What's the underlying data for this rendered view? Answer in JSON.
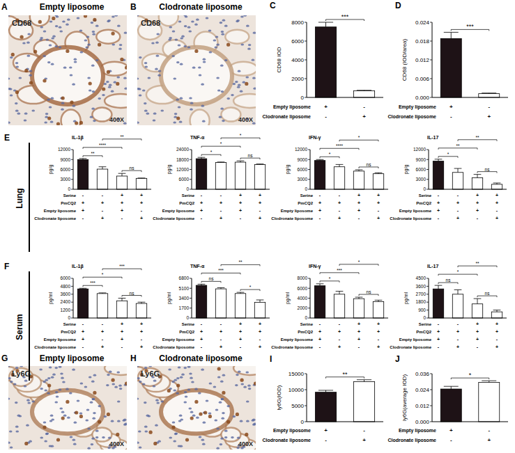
{
  "chart_data": [
    {
      "type": "bar",
      "panel_label": "C",
      "y_label": "CD68 IOD",
      "values": [
        7500,
        700
      ],
      "errors": [
        500,
        60
      ],
      "colors": [
        "#1e1216",
        "#ffffff"
      ],
      "ylim": [
        0,
        8000
      ],
      "yticks": [
        0,
        2000,
        4000,
        6000,
        8000
      ],
      "conditions": [
        {
          "name": "Empty liposome",
          "signs": [
            "+",
            "-"
          ]
        },
        {
          "name": "Clodronate liposome",
          "signs": [
            "-",
            "+"
          ]
        }
      ],
      "significance": [
        {
          "bars": [
            0,
            1
          ],
          "label": "***"
        }
      ]
    },
    {
      "type": "bar",
      "panel_label": "D",
      "y_label": "CD68 (IOD/area)",
      "values": [
        0.0188,
        0.0012
      ],
      "errors": [
        0.002,
        0.0002
      ],
      "colors": [
        "#1e1216",
        "#ffffff"
      ],
      "ylim": [
        0,
        0.024
      ],
      "yticks": [
        {
          "value": 0,
          "label": "0.000"
        },
        {
          "value": 0.006,
          "label": "0.006"
        },
        {
          "value": 0.012,
          "label": "0.012"
        },
        {
          "value": 0.018,
          "label": "0.018"
        },
        {
          "value": 0.024,
          "label": "0.024"
        }
      ],
      "conditions": [
        {
          "name": "Empty liposome",
          "signs": [
            "+",
            "-"
          ]
        },
        {
          "name": "Clodronate liposome",
          "signs": [
            "-",
            "+"
          ]
        }
      ],
      "significance": [
        {
          "bars": [
            0,
            1
          ],
          "label": "***"
        }
      ]
    },
    {
      "type": "bar",
      "title": "IL-1β",
      "y_label": "pg/g",
      "values": [
        9000,
        6100,
        4000,
        3300
      ],
      "errors": [
        300,
        700,
        800,
        100
      ],
      "colors": [
        "#1e1216",
        "#ffffff",
        "#ffffff",
        "#ffffff"
      ],
      "ylim": [
        0,
        12000
      ],
      "yticks": [
        0,
        3000,
        6000,
        9000,
        12000
      ],
      "conditions": [
        {
          "name": "Serine",
          "signs": [
            "-",
            "-",
            "+",
            "+"
          ]
        },
        {
          "name": "PmCQ2",
          "signs": [
            "+",
            "+",
            "+",
            "+"
          ]
        },
        {
          "name": "Empty liposome",
          "signs": [
            "+",
            "-",
            "+",
            "-"
          ]
        },
        {
          "name": "Clodronate liposome",
          "signs": [
            "-",
            "+",
            "-",
            "+"
          ]
        }
      ],
      "significance": [
        {
          "bars": [
            0,
            2
          ],
          "label": "****"
        },
        {
          "bars": [
            0,
            1
          ],
          "label": "**"
        },
        {
          "bars": [
            1,
            3
          ],
          "label": "**"
        },
        {
          "bars": [
            2,
            3
          ],
          "label": "ns"
        }
      ]
    },
    {
      "type": "bar",
      "title": "TNF-α",
      "y_label": "pg/g",
      "values": [
        18500,
        16200,
        16400,
        15000
      ],
      "errors": [
        800,
        300,
        800,
        300
      ],
      "colors": [
        "#1e1216",
        "#ffffff",
        "#ffffff",
        "#ffffff"
      ],
      "ylim": [
        0,
        24000
      ],
      "yticks": [
        0,
        6000,
        12000,
        18000,
        24000
      ],
      "conditions": [
        {
          "name": "Serine",
          "signs": [
            "-",
            "-",
            "+",
            "+"
          ]
        },
        {
          "name": "PmCQ2",
          "signs": [
            "+",
            "+",
            "+",
            "+"
          ]
        },
        {
          "name": "Empty liposome",
          "signs": [
            "+",
            "-",
            "+",
            "-"
          ]
        },
        {
          "name": "Clodronate liposome",
          "signs": [
            "-",
            "+",
            "-",
            "+"
          ]
        }
      ],
      "significance": [
        {
          "bars": [
            0,
            2
          ],
          "label": "*"
        },
        {
          "bars": [
            0,
            1
          ],
          "label": "*"
        },
        {
          "bars": [
            1,
            3
          ],
          "label": "*"
        },
        {
          "bars": [
            2,
            3
          ],
          "label": "ns"
        }
      ]
    },
    {
      "type": "bar",
      "title": "IFN-γ",
      "y_label": "pg/g",
      "values": [
        8700,
        6800,
        5500,
        4700
      ],
      "errors": [
        300,
        700,
        400,
        300
      ],
      "colors": [
        "#1e1216",
        "#ffffff",
        "#ffffff",
        "#ffffff"
      ],
      "ylim": [
        0,
        12000
      ],
      "yticks": [
        0,
        3000,
        6000,
        9000,
        12000
      ],
      "conditions": [
        {
          "name": "Serine",
          "signs": [
            "-",
            "-",
            "+",
            "+"
          ]
        },
        {
          "name": "PmCQ2",
          "signs": [
            "+",
            "+",
            "+",
            "+"
          ]
        },
        {
          "name": "Empty liposome",
          "signs": [
            "+",
            "-",
            "+",
            "-"
          ]
        },
        {
          "name": "Clodronate liposome",
          "signs": [
            "-",
            "+",
            "-",
            "+"
          ]
        }
      ],
      "significance": [
        {
          "bars": [
            0,
            2
          ],
          "label": "****"
        },
        {
          "bars": [
            0,
            1
          ],
          "label": "*"
        },
        {
          "bars": [
            1,
            3
          ],
          "label": "*"
        },
        {
          "bars": [
            2,
            3
          ],
          "label": "ns"
        }
      ]
    },
    {
      "type": "bar",
      "title": "IL-17",
      "y_label": "pg/g",
      "values": [
        8500,
        5100,
        3500,
        1500
      ],
      "errors": [
        600,
        1200,
        1000,
        400
      ],
      "colors": [
        "#1e1216",
        "#ffffff",
        "#ffffff",
        "#ffffff"
      ],
      "ylim": [
        0,
        12000
      ],
      "yticks": [
        0,
        3000,
        6000,
        9000,
        12000
      ],
      "conditions": [
        {
          "name": "Serine",
          "signs": [
            "-",
            "-",
            "+",
            "+"
          ]
        },
        {
          "name": "PmCQ2",
          "signs": [
            "+",
            "+",
            "+",
            "+"
          ]
        },
        {
          "name": "Empty liposome",
          "signs": [
            "+",
            "-",
            "+",
            "-"
          ]
        },
        {
          "name": "Clodronate liposome",
          "signs": [
            "-",
            "+",
            "-",
            "+"
          ]
        }
      ],
      "significance": [
        {
          "bars": [
            0,
            2
          ],
          "label": "**"
        },
        {
          "bars": [
            0,
            1
          ],
          "label": "*"
        },
        {
          "bars": [
            1,
            3
          ],
          "label": "**"
        },
        {
          "bars": [
            2,
            3
          ],
          "label": "ns"
        }
      ]
    },
    {
      "type": "bar",
      "title": "IL-1β",
      "y_label": "pg/ml",
      "values": [
        4400,
        3700,
        2600,
        2200
      ],
      "errors": [
        100,
        100,
        400,
        200
      ],
      "colors": [
        "#1e1216",
        "#ffffff",
        "#ffffff",
        "#ffffff"
      ],
      "ylim": [
        0,
        6000
      ],
      "yticks": [
        0,
        1200,
        2400,
        3600,
        4800,
        6000
      ],
      "conditions": [
        {
          "name": "Serine",
          "signs": [
            "-",
            "-",
            "+",
            "+"
          ]
        },
        {
          "name": "PmCQ2",
          "signs": [
            "+",
            "+",
            "+",
            "+"
          ]
        },
        {
          "name": "Empty liposome",
          "signs": [
            "+",
            "-",
            "+",
            "-"
          ]
        },
        {
          "name": "Clodronate liposome",
          "signs": [
            "-",
            "+",
            "-",
            "+"
          ]
        }
      ],
      "significance": [
        {
          "bars": [
            0,
            2
          ],
          "label": "*"
        },
        {
          "bars": [
            0,
            1
          ],
          "label": "***"
        },
        {
          "bars": [
            1,
            3
          ],
          "label": "***"
        },
        {
          "bars": [
            2,
            3
          ],
          "label": "ns"
        }
      ]
    },
    {
      "type": "bar",
      "title": "TNF-α",
      "y_label": "pg/ml",
      "values": [
        5600,
        5000,
        4200,
        2700
      ],
      "errors": [
        200,
        200,
        200,
        400
      ],
      "colors": [
        "#1e1216",
        "#ffffff",
        "#ffffff",
        "#ffffff"
      ],
      "ylim": [
        0,
        6800
      ],
      "yticks": [
        0,
        1700,
        3400,
        5100,
        6800
      ],
      "conditions": [
        {
          "name": "Serine",
          "signs": [
            "-",
            "-",
            "+",
            "+"
          ]
        },
        {
          "name": "PmCQ2",
          "signs": [
            "+",
            "+",
            "+",
            "+"
          ]
        },
        {
          "name": "Empty liposome",
          "signs": [
            "+",
            "-",
            "+",
            "-"
          ]
        },
        {
          "name": "Clodronate liposome",
          "signs": [
            "-",
            "+",
            "-",
            "+"
          ]
        }
      ],
      "significance": [
        {
          "bars": [
            0,
            2
          ],
          "label": "***"
        },
        {
          "bars": [
            0,
            1
          ],
          "label": "ns"
        },
        {
          "bars": [
            1,
            3
          ],
          "label": "**"
        },
        {
          "bars": [
            2,
            3
          ],
          "label": "*"
        }
      ]
    },
    {
      "type": "bar",
      "title": "IFN-γ",
      "y_label": "pg/ml",
      "values": [
        6500,
        4800,
        3900,
        3300
      ],
      "errors": [
        400,
        600,
        300,
        300
      ],
      "colors": [
        "#1e1216",
        "#ffffff",
        "#ffffff",
        "#ffffff"
      ],
      "ylim": [
        0,
        8000
      ],
      "yticks": [
        0,
        2000,
        4000,
        6000,
        8000
      ],
      "conditions": [
        {
          "name": "Serine",
          "signs": [
            "-",
            "-",
            "+",
            "+"
          ]
        },
        {
          "name": "PmCQ2",
          "signs": [
            "+",
            "+",
            "+",
            "+"
          ]
        },
        {
          "name": "Empty liposome",
          "signs": [
            "+",
            "-",
            "+",
            "-"
          ]
        },
        {
          "name": "Clodronate liposome",
          "signs": [
            "-",
            "+",
            "-",
            "+"
          ]
        }
      ],
      "significance": [
        {
          "bars": [
            0,
            2
          ],
          "label": "***"
        },
        {
          "bars": [
            0,
            1
          ],
          "label": "*"
        },
        {
          "bars": [
            1,
            3
          ],
          "label": "*"
        },
        {
          "bars": [
            2,
            3
          ],
          "label": "ns"
        }
      ]
    },
    {
      "type": "bar",
      "title": "IL-17",
      "y_label": "pg/ml",
      "values": [
        3300,
        2700,
        1600,
        700
      ],
      "errors": [
        400,
        500,
        600,
        200
      ],
      "colors": [
        "#1e1216",
        "#ffffff",
        "#ffffff",
        "#ffffff"
      ],
      "ylim": [
        0,
        4500
      ],
      "yticks": [
        0,
        900,
        1800,
        2700,
        3600,
        4500
      ],
      "conditions": [
        {
          "name": "Serine",
          "signs": [
            "-",
            "-",
            "+",
            "+"
          ]
        },
        {
          "name": "PmCQ2",
          "signs": [
            "+",
            "+",
            "+",
            "+"
          ]
        },
        {
          "name": "Empty liposome",
          "signs": [
            "+",
            "-",
            "+",
            "-"
          ]
        },
        {
          "name": "Clodronate liposome",
          "signs": [
            "-",
            "+",
            "-",
            "+"
          ]
        }
      ],
      "significance": [
        {
          "bars": [
            0,
            2
          ],
          "label": "*"
        },
        {
          "bars": [
            0,
            1
          ],
          "label": "ns"
        },
        {
          "bars": [
            1,
            3
          ],
          "label": "**"
        },
        {
          "bars": [
            2,
            3
          ],
          "label": "ns"
        }
      ]
    },
    {
      "type": "bar",
      "panel_label": "I",
      "y_label": "ly6G(IOD)",
      "values": [
        9200,
        12500
      ],
      "errors": [
        600,
        600
      ],
      "colors": [
        "#1e1216",
        "#ffffff"
      ],
      "ylim": [
        0,
        15000
      ],
      "yticks": [
        0,
        5000,
        10000,
        15000
      ],
      "conditions": [
        {
          "name": "Empty liposome",
          "signs": [
            "+",
            "-"
          ]
        },
        {
          "name": "Clodronate liposome",
          "signs": [
            "-",
            "+"
          ]
        }
      ],
      "significance": [
        {
          "bars": [
            0,
            1
          ],
          "label": "**"
        }
      ]
    },
    {
      "type": "bar",
      "panel_label": "J",
      "y_label": "ly6G(average IOD)",
      "values": [
        0.0245,
        0.0295
      ],
      "errors": [
        0.002,
        0.0012
      ],
      "colors": [
        "#1e1216",
        "#ffffff"
      ],
      "ylim": [
        0,
        0.036
      ],
      "yticks": [
        {
          "value": 0,
          "label": "0.000"
        },
        {
          "value": 0.012,
          "label": "0.012"
        },
        {
          "value": 0.024,
          "label": "0.024"
        },
        {
          "value": 0.036,
          "label": "0.036"
        }
      ],
      "conditions": [
        {
          "name": "Empty liposome",
          "signs": [
            "+",
            "-"
          ]
        },
        {
          "name": "Clodronate liposome",
          "signs": [
            "-",
            "+"
          ]
        }
      ],
      "significance": [
        {
          "bars": [
            0,
            1
          ],
          "label": "*"
        }
      ]
    }
  ],
  "rows": [
    {
      "panel": "E",
      "label": "Lung"
    },
    {
      "panel": "F",
      "label": "Serum"
    }
  ],
  "images": [
    {
      "panel": "A",
      "title": "Empty liposome",
      "stain": "CD68",
      "magnification": "400X"
    },
    {
      "panel": "B",
      "title": "Clodronate liposome",
      "stain": "CD68",
      "magnification": "400X"
    },
    {
      "panel": "G",
      "title": "Empty liposome",
      "stain": "Ly6G",
      "magnification": "400X"
    },
    {
      "panel": "H",
      "title": "Clodronate liposome",
      "stain": "Ly6G",
      "magnification": "400X"
    }
  ]
}
